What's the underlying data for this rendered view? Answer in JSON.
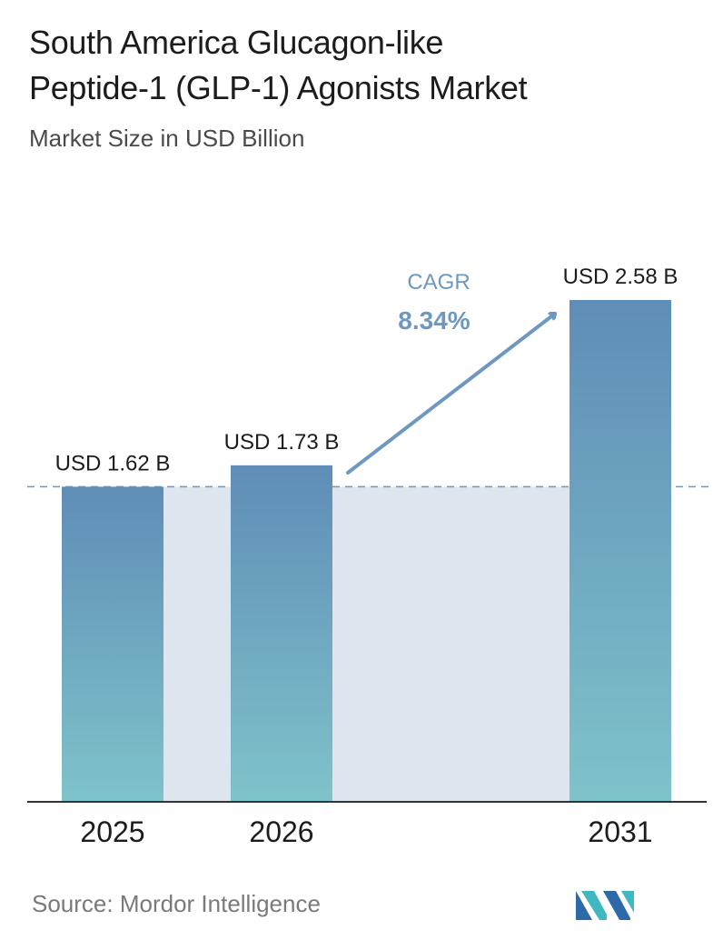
{
  "header": {
    "title_line1": "South America Glucagon-like",
    "title_line2": "Peptide-1 (GLP-1) Agonists Market",
    "subtitle": "Market Size in USD Billion"
  },
  "chart_data": {
    "type": "bar",
    "categories": [
      "2025",
      "2026",
      "2031"
    ],
    "values": [
      1.62,
      1.73,
      2.58
    ],
    "value_labels": [
      "USD 1.62 B",
      "USD 1.73 B",
      "USD 2.58 B"
    ],
    "title": "South America Glucagon-like Peptide-1 (GLP-1) Agonists Market",
    "subtitle": "Market Size in USD Billion",
    "xlabel": "",
    "ylabel": "",
    "ylim": [
      0,
      2.58
    ],
    "grid": false,
    "reference_line_value": 1.62,
    "annotation": {
      "label": "CAGR",
      "value": "8.34%"
    }
  },
  "colors": {
    "bar_top": "#5f8db7",
    "bar_bottom": "#7fc3ca",
    "band": "#dde6ef",
    "arrow": "#6e98c0",
    "cagr_text": "#6e98c0",
    "axis": "#333333",
    "dashed_line": "#6e98c0"
  },
  "footer": {
    "source": "Source: Mordor Intelligence",
    "logo_icon": "mordor-intelligence-logo-icon"
  }
}
